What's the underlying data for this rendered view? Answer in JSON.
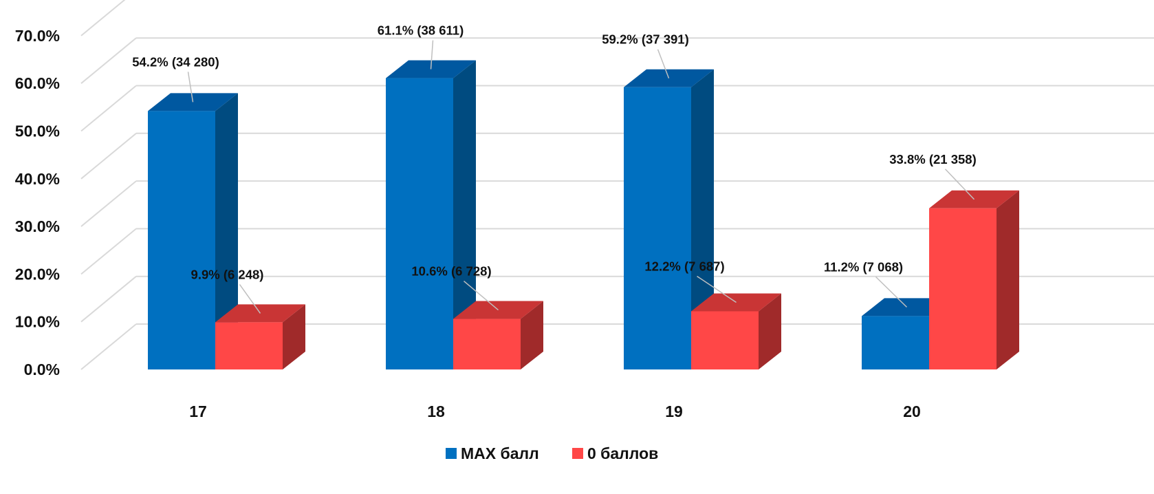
{
  "chart_data": {
    "type": "bar",
    "categories": [
      "17",
      "18",
      "19",
      "20"
    ],
    "series": [
      {
        "name": "MAX балл",
        "values": [
          54.2,
          61.1,
          59.2,
          11.2
        ],
        "labels": [
          "54.2% (34 280)",
          "61.1% (38 611)",
          "59.2% (37 391)",
          "11.2% (7 068)"
        ],
        "color": "#0070C0",
        "side_color": "#004B80",
        "top_color": "#0058A0"
      },
      {
        "name": "0 баллов",
        "values": [
          9.9,
          10.6,
          12.2,
          33.8
        ],
        "labels": [
          "9.9% (6 248)",
          "10.6% (6 728)",
          "12.2% (7 687)",
          "33.8% (21 358)"
        ],
        "color": "#FF4747",
        "side_color": "#A02A2A",
        "top_color": "#C93535"
      }
    ],
    "yticks": [
      "0.0%",
      "10.0%",
      "20.0%",
      "30.0%",
      "40.0%",
      "50.0%",
      "60.0%",
      "70.0%"
    ],
    "ylim": [
      0,
      80
    ],
    "grid": true,
    "three_d": true,
    "legend": "bottom-center",
    "title": "",
    "xlabel": "",
    "ylabel": ""
  }
}
